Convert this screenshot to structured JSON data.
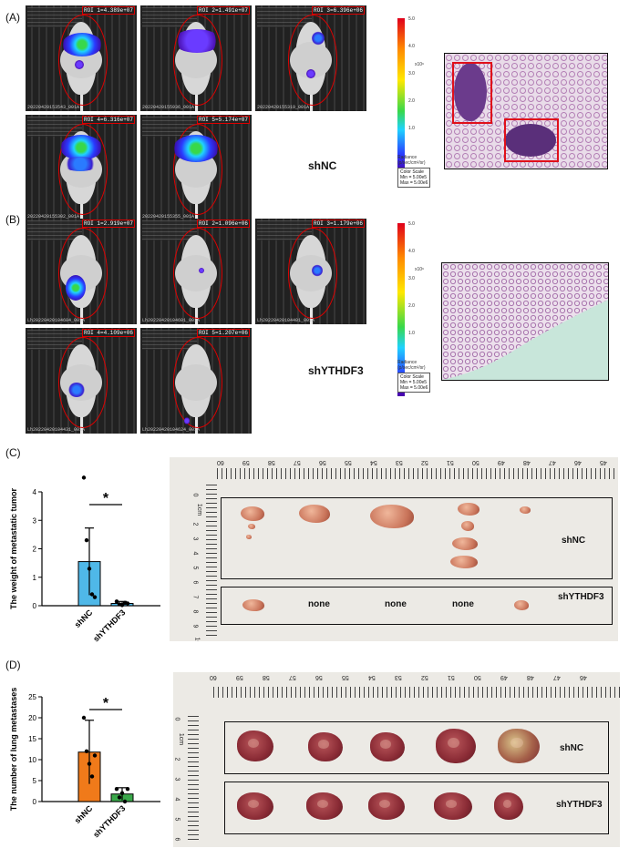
{
  "panels": {
    "A": {
      "label": "(A)",
      "group": "shNC",
      "rois": [
        "ROI 1=4.389e+07",
        "ROI 2=1.491e+07",
        "ROI 3=6.396e+06",
        "ROI 4=6.316e+07",
        "ROI 5=5.174e+07"
      ],
      "footers": [
        "20220420153543_001A",
        "20220420155936_001A",
        "20220420155319_001A",
        "20220420155302_001A",
        "20220420155355_001A"
      ],
      "colorbar": {
        "ticks": [
          "5.0",
          "4.0",
          "3.0",
          "2.0",
          "1.0"
        ],
        "exp": "x10⁶",
        "units": "Radiance\n(p/sec/cm²/sr)",
        "scale": "Color Scale\nMin = 5.00e5\nMax = 5.00e6"
      }
    },
    "B": {
      "label": "(B)",
      "group": "shYTHDF3",
      "rois": [
        "ROI 1=2.919e+07",
        "ROI 2=1.096e+06",
        "ROI 3=1.179e+06",
        "ROI 4=4.109e+06",
        "ROI 5=1.207e+06"
      ],
      "footers": [
        "Lh20220420104604_001A",
        "Lh20220420104601_001A",
        "Lh20220420104401_001A",
        "Lh20220420104431_001A",
        "Lh20220420104624_001A"
      ],
      "colorbar": {
        "ticks": [
          "5.0",
          "4.0",
          "3.0",
          "2.0",
          "1.0"
        ],
        "exp": "x10⁶",
        "units": "Radiance\n(p/sec/cm²/sr)",
        "scale": "Color Scale\nMin = 5.00e5\nMax = 5.00e6"
      }
    },
    "C": {
      "label": "(C)",
      "row_labels": [
        "shNC",
        "shYTHDF3"
      ],
      "none_labels": [
        "none",
        "none",
        "none"
      ],
      "ruler_numbers": [
        "60",
        "59",
        "58",
        "57",
        "56",
        "55",
        "54",
        "53",
        "52",
        "51",
        "50",
        "49",
        "48",
        "47",
        "46",
        "45"
      ],
      "vruler_numbers": [
        "0",
        "1cm",
        "2",
        "3",
        "4",
        "5",
        "6",
        "7",
        "8",
        "9",
        "10"
      ]
    },
    "D": {
      "label": "(D)",
      "row_labels": [
        "shNC",
        "shYTHDF3"
      ],
      "ruler_numbers": [
        "60",
        "59",
        "58",
        "57",
        "56",
        "55",
        "54",
        "53",
        "52",
        "51",
        "50",
        "49",
        "48",
        "47",
        "46"
      ],
      "vruler_numbers": [
        "0",
        "1cm",
        "2",
        "3",
        "4",
        "5",
        "6"
      ]
    }
  },
  "chart_data": [
    {
      "type": "bar",
      "panel": "C",
      "categories": [
        "shNC",
        "shYTHDF3"
      ],
      "values": [
        1.55,
        0.08
      ],
      "errors": [
        1.18,
        0.07
      ],
      "points": [
        [
          4.5,
          2.3,
          1.3,
          0.4,
          0.3
        ],
        [
          0.15,
          0.05,
          0.02,
          0.1,
          0.08
        ]
      ],
      "colors": [
        "#4fb8e8",
        "#4fb8e8"
      ],
      "ylabel": "The weight of metastatic tumor",
      "ylim": [
        0,
        4
      ],
      "yticks": [
        "0",
        "1",
        "2",
        "3",
        "4"
      ],
      "significance": "*"
    },
    {
      "type": "bar",
      "panel": "D",
      "categories": [
        "shNC",
        "shYTHDF3"
      ],
      "values": [
        11.8,
        1.8
      ],
      "errors": [
        7.6,
        1.5
      ],
      "points": [
        [
          20,
          12,
          9,
          6,
          11
        ],
        [
          3,
          1,
          2,
          0,
          3
        ]
      ],
      "colors": [
        "#f07a1a",
        "#3aa84a"
      ],
      "ylabel": "The number of lung metastases",
      "ylim": [
        0,
        25
      ],
      "yticks": [
        "0",
        "5",
        "10",
        "15",
        "20",
        "25"
      ],
      "significance": "*"
    }
  ]
}
